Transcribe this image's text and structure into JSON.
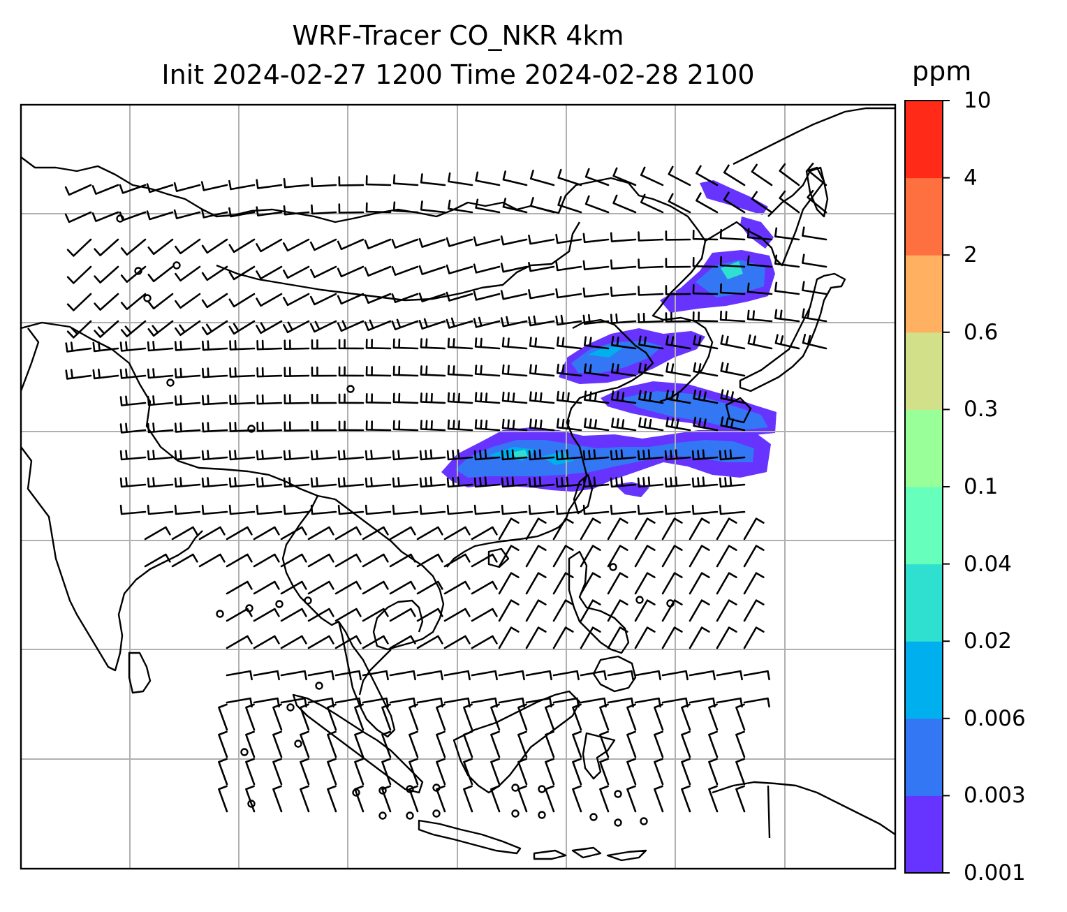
{
  "title": {
    "line1": "WRF-Tracer CO_NKR 4km",
    "line2": "Init 2024-02-27 1200 Time 2024-02-28 2100"
  },
  "colorbar": {
    "unit": "ppm",
    "levels": [
      "0.001",
      "0.003",
      "0.006",
      "0.02",
      "0.04",
      "0.1",
      "0.3",
      "0.6",
      "2",
      "4",
      "10"
    ],
    "colors": [
      "#6633ff",
      "#3377f5",
      "#00b0ee",
      "#2fe0d0",
      "#66ffbb",
      "#99ff99",
      "#d3e08a",
      "#ffb060",
      "#ff7040",
      "#ff2a18"
    ]
  },
  "map": {
    "coastline_color": "#000000",
    "gridline_color": "#b0b0b0",
    "barb_color": "#000000",
    "plume_colors": [
      "#6633ff",
      "#3377f5",
      "#00b0ee",
      "#2fe0d0"
    ]
  }
}
